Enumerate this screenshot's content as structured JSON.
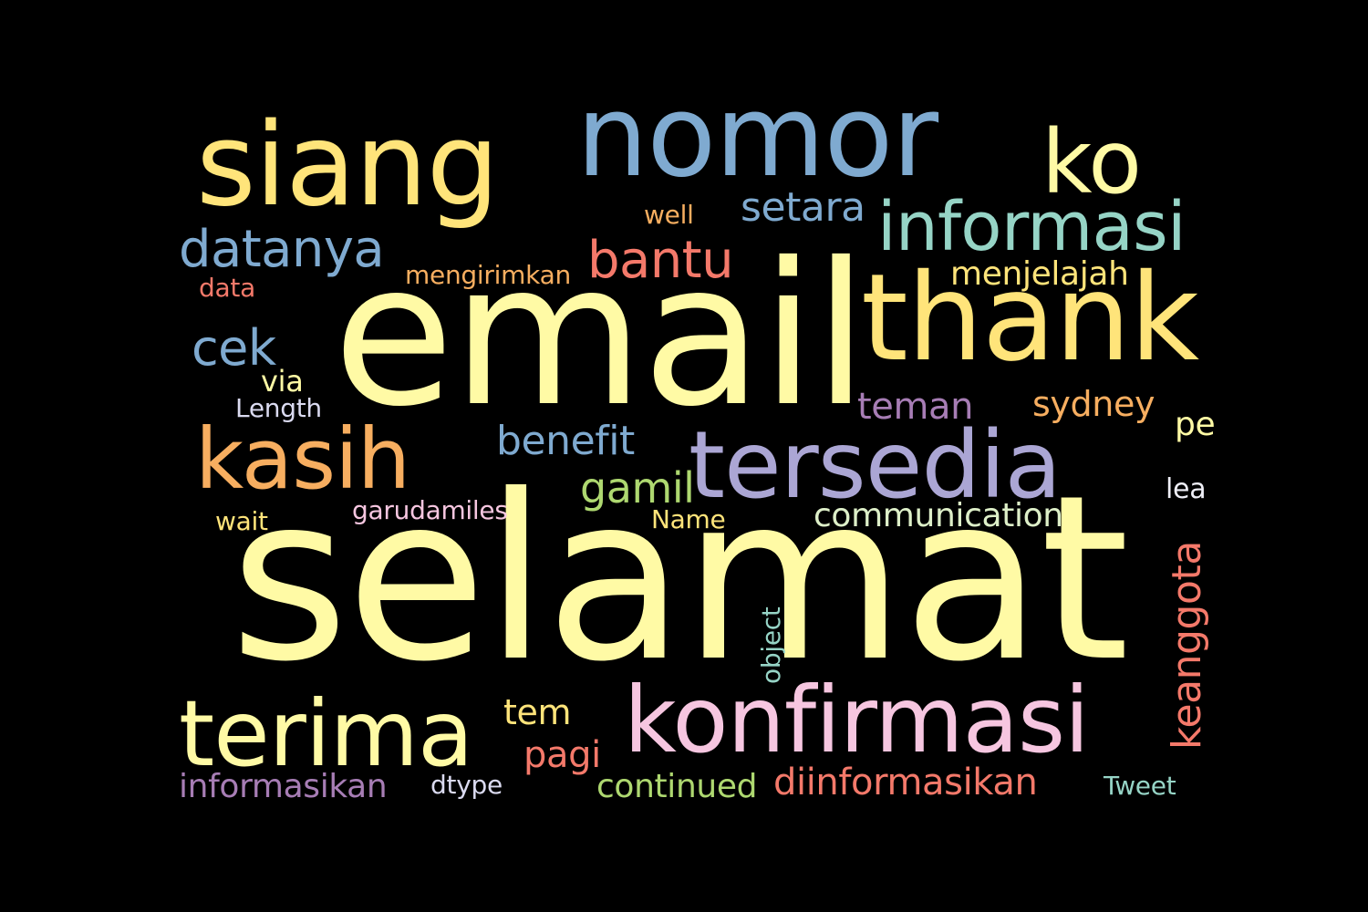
{
  "words": [
    {
      "text": "selamat",
      "color": "#FFFAA5"
    },
    {
      "text": "email",
      "color": "#FFFAA5"
    },
    {
      "text": "nomor",
      "color": "#7FAAD0"
    },
    {
      "text": "siang",
      "color": "#FFE47A"
    },
    {
      "text": "thank",
      "color": "#FFE47A"
    },
    {
      "text": "ko",
      "color": "#FFFAA5"
    },
    {
      "text": "tersedia",
      "color": "#ABA6D4"
    },
    {
      "text": "konfirmasi",
      "color": "#F6C6E0"
    },
    {
      "text": "terima",
      "color": "#FFFAA5"
    },
    {
      "text": "kasih",
      "color": "#F7AE60"
    },
    {
      "text": "informasi",
      "color": "#96D4C6"
    },
    {
      "text": "datanya",
      "color": "#7FAAD0"
    },
    {
      "text": "bantu",
      "color": "#F4796A"
    },
    {
      "text": "setara",
      "color": "#7FAAD0"
    },
    {
      "text": "cek",
      "color": "#7FAAD0"
    },
    {
      "text": "menjelajah",
      "color": "#FFE47A"
    },
    {
      "text": "benefit",
      "color": "#7FAAD0"
    },
    {
      "text": "keanggota",
      "color": "#F4796A"
    },
    {
      "text": "sydney",
      "color": "#F7AE60"
    },
    {
      "text": "teman",
      "color": "#A77DB5"
    },
    {
      "text": "gamil",
      "color": "#AED870"
    },
    {
      "text": "communication",
      "color": "#DDEFC8"
    },
    {
      "text": "diinformasikan",
      "color": "#F4796A"
    },
    {
      "text": "informasikan",
      "color": "#A77DB5"
    },
    {
      "text": "continued",
      "color": "#AED870"
    },
    {
      "text": "pagi",
      "color": "#F4796A"
    },
    {
      "text": "tem",
      "color": "#FFE47A"
    },
    {
      "text": "mengirimkan",
      "color": "#F7AE60"
    },
    {
      "text": "garudamiles",
      "color": "#F6C6E0"
    },
    {
      "text": "object",
      "color": "#96D4C6"
    },
    {
      "text": "Tweet",
      "color": "#96D4C6"
    },
    {
      "text": "dtype",
      "color": "#DADAF0"
    },
    {
      "text": "Name",
      "color": "#FFE47A"
    },
    {
      "text": "Length",
      "color": "#DADAF0"
    },
    {
      "text": "via",
      "color": "#FFFAA5"
    },
    {
      "text": "well",
      "color": "#F7AE60"
    },
    {
      "text": "data",
      "color": "#F4796A"
    },
    {
      "text": "wait",
      "color": "#FFE47A"
    },
    {
      "text": "pe",
      "color": "#FFFAA5"
    },
    {
      "text": "lea",
      "color": "#EEEEF6"
    }
  ]
}
